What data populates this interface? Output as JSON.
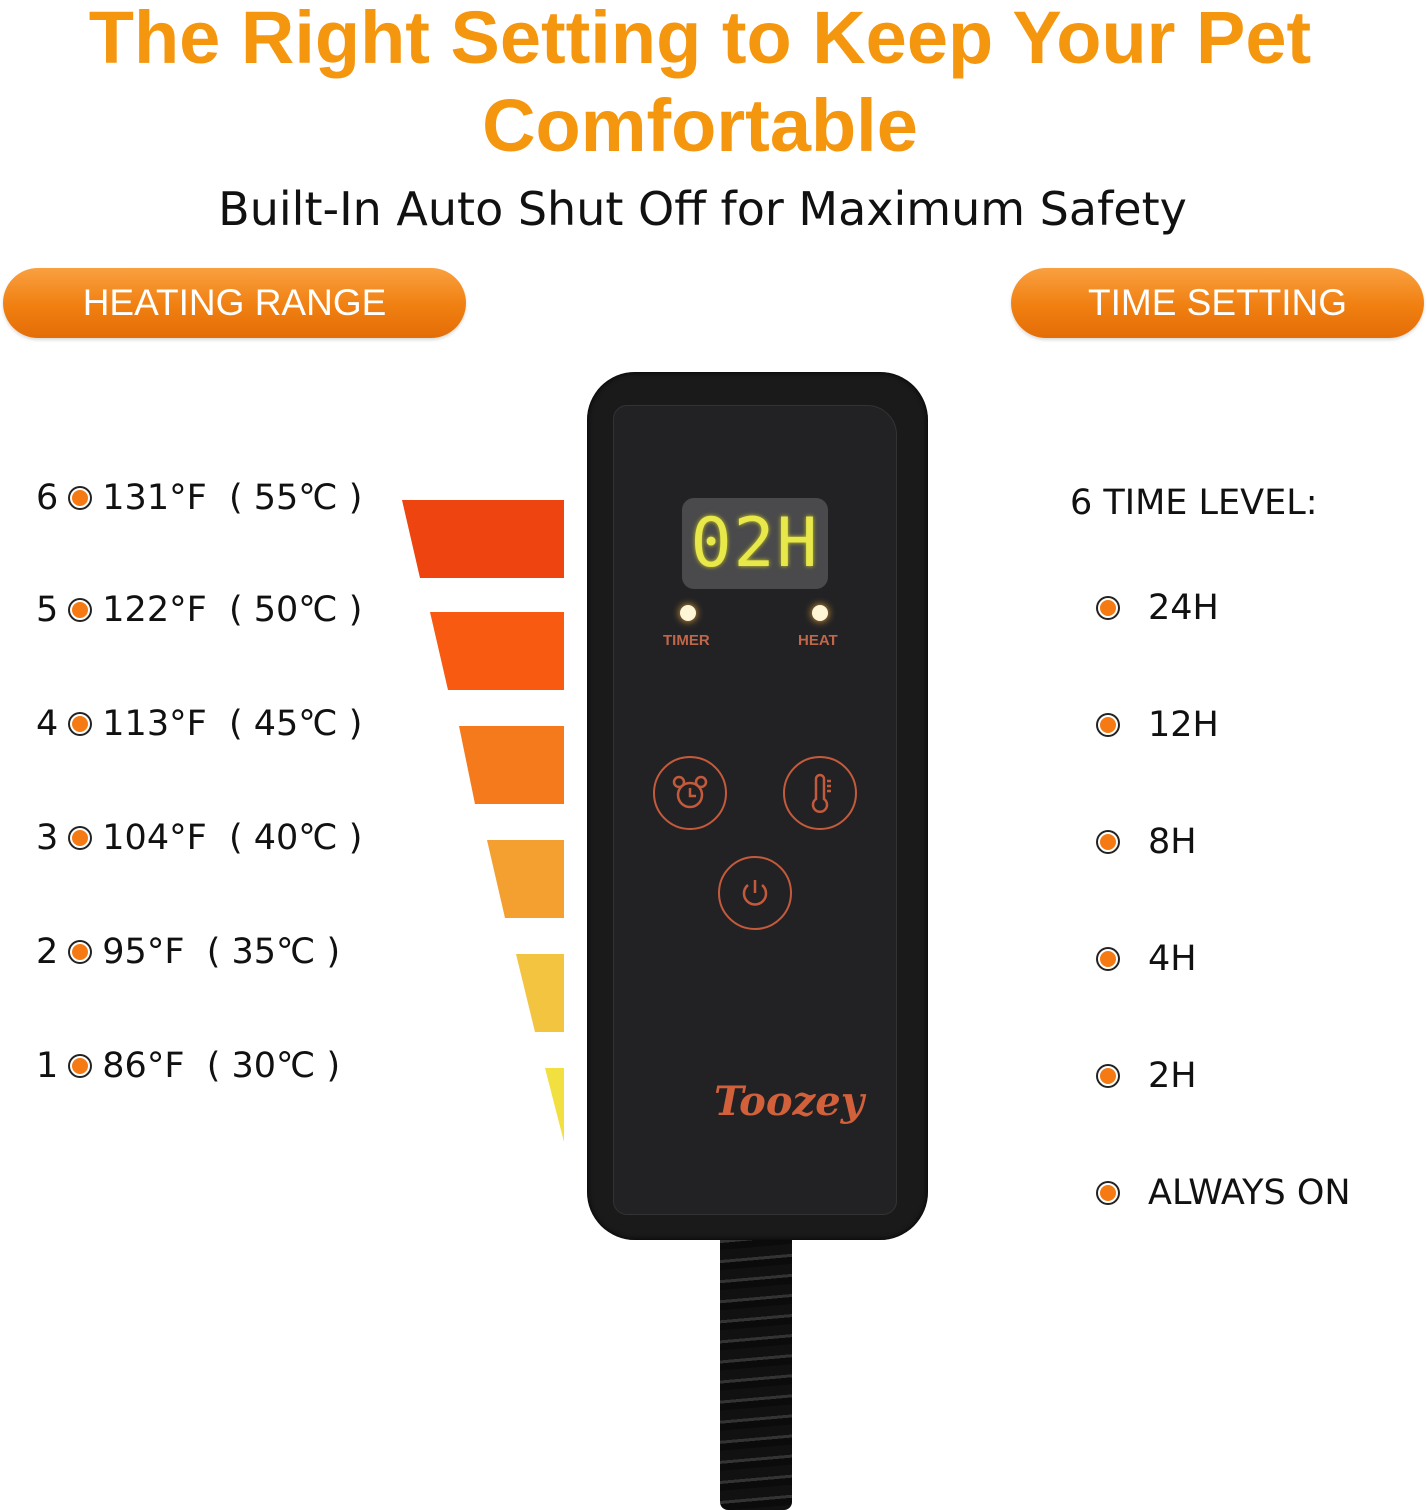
{
  "header": {
    "title": "The Right Setting to Keep Your Pet Comfortable",
    "subtitle": "Built-In Auto Shut Off for Maximum Safety"
  },
  "heating": {
    "label": "HEATING RANGE",
    "levels": [
      {
        "level": "6",
        "text": "131°F  ( 55℃ )",
        "color": "#ee4410"
      },
      {
        "level": "5",
        "text": "122°F  ( 50℃ )",
        "color": "#f85a12"
      },
      {
        "level": "4",
        "text": "113°F  ( 45℃ )",
        "color": "#f47a1c"
      },
      {
        "level": "3",
        "text": "104°F  ( 40℃ )",
        "color": "#f3a030"
      },
      {
        "level": "2",
        "text": "95°F  ( 35℃ )",
        "color": "#f2c440"
      },
      {
        "level": "1",
        "text": "86°F  ( 30℃ )",
        "color": "#f2e040"
      }
    ]
  },
  "time": {
    "label": "TIME SETTING",
    "heading": "6 TIME LEVEL:",
    "levels": [
      "24H",
      "12H",
      "8H",
      "4H",
      "2H",
      "ALWAYS ON"
    ]
  },
  "controller": {
    "display": "02H",
    "timer_label": "TIMER",
    "heat_label": "HEAT",
    "brand": "Toozey",
    "icons": [
      "alarm-clock-icon",
      "thermometer-icon",
      "power-icon"
    ]
  },
  "colors": {
    "accent": "#f5960f",
    "dot": "#f57a14",
    "button_outline": "#c45a3c",
    "display_digits": "#e8e84a"
  }
}
